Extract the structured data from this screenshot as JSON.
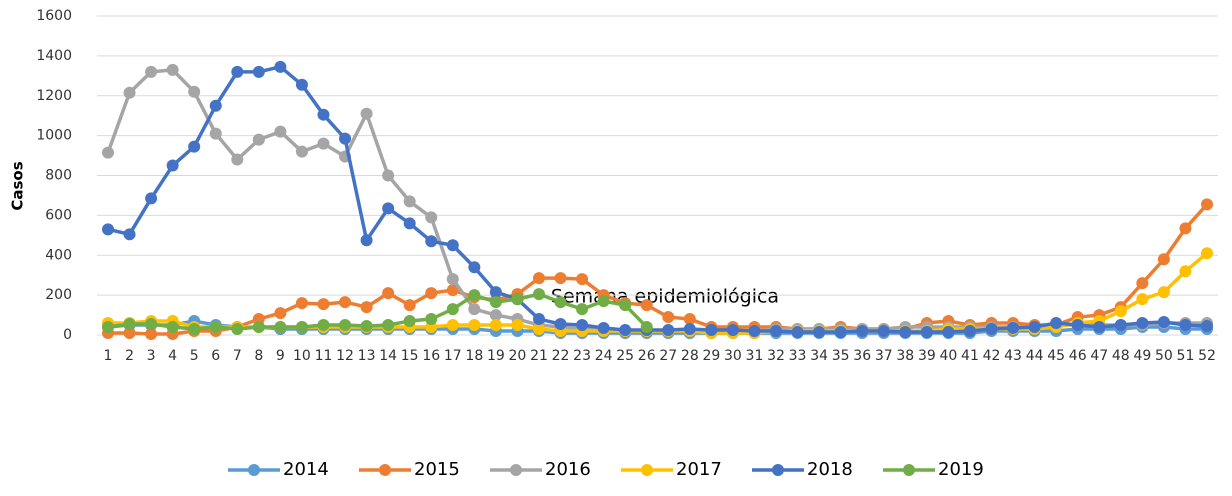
{
  "chart_data": {
    "type": "line",
    "x_label": "Semana epidemiológica",
    "y_label": "Casos",
    "categories": [
      "1",
      "2",
      "3",
      "4",
      "5",
      "6",
      "7",
      "8",
      "9",
      "10",
      "11",
      "12",
      "13",
      "14",
      "15",
      "16",
      "17",
      "18",
      "19",
      "20",
      "21",
      "22",
      "23",
      "24",
      "25",
      "26",
      "27",
      "28",
      "29",
      "30",
      "31",
      "32",
      "33",
      "34",
      "35",
      "36",
      "37",
      "38",
      "39",
      "40",
      "41",
      "42",
      "43",
      "44",
      "45",
      "46",
      "47",
      "48",
      "49",
      "50",
      "51",
      "52"
    ],
    "ylim": [
      0,
      1600
    ],
    "yticks": [
      0,
      200,
      400,
      600,
      800,
      1000,
      1200,
      1400,
      1600
    ],
    "grid": true,
    "legend": "bottom",
    "series": [
      {
        "name": "2014",
        "color": "#5b9bd5",
        "values": [
          40,
          50,
          50,
          50,
          70,
          50,
          40,
          40,
          30,
          30,
          30,
          30,
          30,
          30,
          30,
          30,
          30,
          30,
          20,
          20,
          20,
          10,
          10,
          10,
          10,
          10,
          10,
          10,
          10,
          10,
          10,
          10,
          10,
          10,
          10,
          10,
          10,
          10,
          10,
          10,
          10,
          20,
          20,
          20,
          20,
          30,
          30,
          30,
          40,
          40,
          30,
          30
        ]
      },
      {
        "name": "2015",
        "color": "#ed7d31",
        "values": [
          10,
          10,
          5,
          5,
          20,
          20,
          40,
          80,
          110,
          160,
          155,
          165,
          140,
          210,
          150,
          210,
          225,
          190,
          175,
          205,
          285,
          285,
          280,
          200,
          160,
          150,
          90,
          80,
          40,
          40,
          40,
          40,
          30,
          30,
          40,
          30,
          30,
          30,
          60,
          70,
          50,
          60,
          60,
          50,
          50,
          90,
          100,
          140,
          260,
          380,
          535,
          655
        ]
      },
      {
        "name": "2016",
        "color": "#a5a5a5",
        "values": [
          915,
          1215,
          1320,
          1330,
          1220,
          1010,
          880,
          980,
          1020,
          920,
          960,
          895,
          1110,
          800,
          670,
          590,
          280,
          130,
          100,
          80,
          50,
          40,
          30,
          30,
          20,
          20,
          20,
          20,
          20,
          20,
          20,
          30,
          30,
          30,
          30,
          30,
          30,
          40,
          40,
          40,
          40,
          40,
          40,
          40,
          50,
          50,
          50,
          50,
          50,
          60,
          60,
          60
        ]
      },
      {
        "name": "2017",
        "color": "#ffc000",
        "values": [
          60,
          60,
          70,
          70,
          40,
          40,
          40,
          40,
          40,
          40,
          40,
          40,
          40,
          40,
          40,
          40,
          50,
          50,
          50,
          50,
          30,
          20,
          20,
          20,
          20,
          20,
          20,
          20,
          10,
          10,
          10,
          20,
          20,
          20,
          20,
          20,
          20,
          20,
          20,
          30,
          30,
          30,
          30,
          30,
          40,
          60,
          70,
          120,
          180,
          215,
          320,
          410
        ]
      },
      {
        "name": "2018",
        "color": "#4472c4",
        "values": [
          530,
          505,
          685,
          850,
          945,
          1150,
          1320,
          1320,
          1345,
          1255,
          1105,
          985,
          475,
          635,
          560,
          470,
          450,
          340,
          215,
          180,
          80,
          55,
          50,
          35,
          25,
          25,
          25,
          30,
          25,
          25,
          20,
          20,
          15,
          15,
          15,
          20,
          20,
          15,
          15,
          15,
          20,
          30,
          35,
          40,
          60,
          50,
          40,
          50,
          60,
          65,
          50,
          45
        ]
      },
      {
        "name": "2019",
        "color": "#70ad47",
        "values": [
          40,
          55,
          55,
          40,
          30,
          40,
          30,
          40,
          40,
          40,
          50,
          50,
          45,
          50,
          70,
          80,
          130,
          200,
          165,
          180,
          205,
          165,
          130,
          170,
          150,
          40,
          null,
          null,
          null,
          null,
          null,
          null,
          null,
          null,
          null,
          null,
          null,
          null,
          null,
          null,
          null,
          null,
          null,
          null,
          null,
          null,
          null,
          null,
          null,
          null,
          null,
          null
        ]
      }
    ]
  }
}
